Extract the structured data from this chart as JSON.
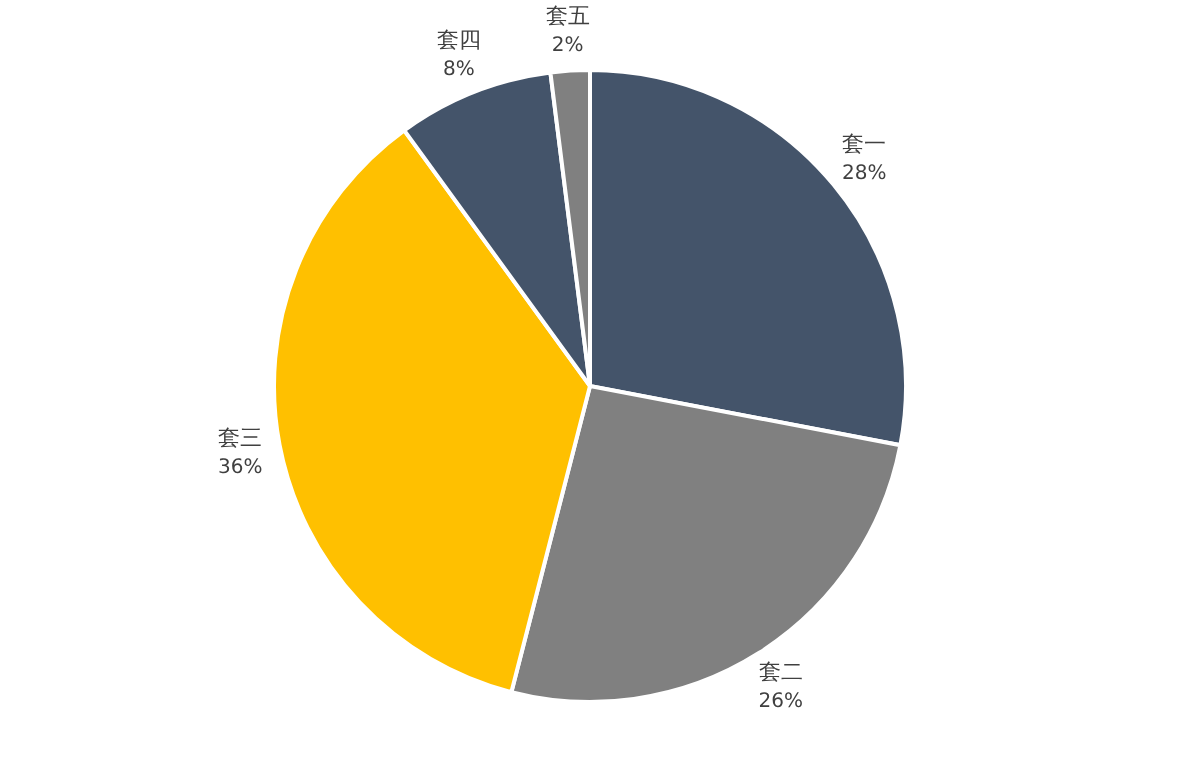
{
  "chart_data": {
    "type": "pie",
    "categories": [
      "套一",
      "套二",
      "套三",
      "套四",
      "套五"
    ],
    "values": [
      28,
      26,
      36,
      8,
      2
    ],
    "value_labels": [
      "28%",
      "26%",
      "36%",
      "8%",
      "2%"
    ],
    "colors": [
      "#44546a",
      "#808080",
      "#ffc000",
      "#44546a",
      "#808080"
    ]
  }
}
